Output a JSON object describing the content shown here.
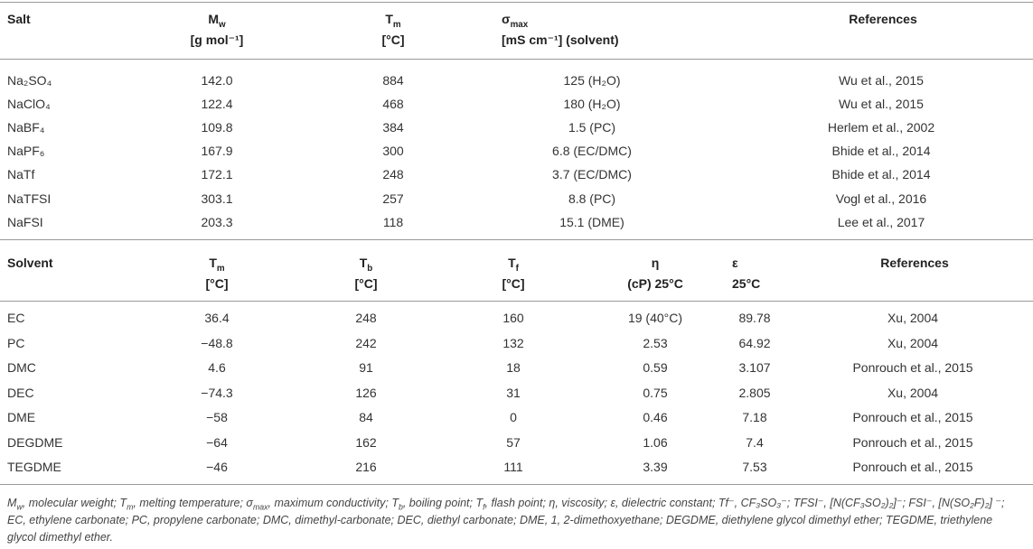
{
  "salt_table": {
    "header": [
      [
        [
          "Salt"
        ]
      ],
      [
        [
          "M",
          {
            "sub": "w"
          }
        ],
        [
          "[g mol⁻¹]"
        ]
      ],
      [
        [
          "T",
          {
            "sub": "m"
          }
        ],
        [
          "[°C]"
        ]
      ],
      [
        [
          "σ",
          {
            "sub": "max"
          }
        ],
        [
          "[mS cm⁻¹] (solvent)"
        ]
      ],
      [
        [
          "References"
        ]
      ]
    ],
    "rows": [
      [
        "Na₂SO₄",
        "142.0",
        "884",
        "125 (H₂O)",
        "Wu et al., 2015"
      ],
      [
        "NaClO₄",
        "122.4",
        "468",
        "180 (H₂O)",
        "Wu et al., 2015"
      ],
      [
        "NaBF₄",
        "109.8",
        "384",
        "1.5 (PC)",
        "Herlem et al., 2002"
      ],
      [
        "NaPF₆",
        "167.9",
        "300",
        "6.8 (EC/DMC)",
        "Bhide et al., 2014"
      ],
      [
        "NaTf",
        "172.1",
        "248",
        "3.7 (EC/DMC)",
        "Bhide et al., 2014"
      ],
      [
        "NaTFSI",
        "303.1",
        "257",
        "8.8 (PC)",
        "Vogl et al., 2016"
      ],
      [
        "NaFSI",
        "203.3",
        "118",
        "15.1 (DME)",
        "Lee et al., 2017"
      ]
    ]
  },
  "solvent_table": {
    "header": [
      [
        [
          "Solvent"
        ]
      ],
      [
        [
          "T",
          {
            "sub": "m"
          }
        ],
        [
          "[°C]"
        ]
      ],
      [
        [
          "T",
          {
            "sub": "b"
          }
        ],
        [
          "[°C]"
        ]
      ],
      [
        [
          "T",
          {
            "sub": "f"
          }
        ],
        [
          "[°C]"
        ]
      ],
      [
        [
          "η"
        ],
        [
          "(cP) 25°C"
        ]
      ],
      [
        [
          "ε"
        ],
        [
          "25°C"
        ]
      ],
      [
        [
          "References"
        ]
      ]
    ],
    "rows": [
      [
        "EC",
        "36.4",
        "248",
        "160",
        "19 (40°C)",
        "89.78",
        "Xu, 2004"
      ],
      [
        "PC",
        "−48.8",
        "242",
        "132",
        "2.53",
        "64.92",
        "Xu, 2004"
      ],
      [
        "DMC",
        "4.6",
        "91",
        "18",
        "0.59",
        "3.107",
        "Ponrouch et al., 2015"
      ],
      [
        "DEC",
        "−74.3",
        "126",
        "31",
        "0.75",
        "2.805",
        "Xu, 2004"
      ],
      [
        "DME",
        "−58",
        "84",
        "0",
        "0.46",
        "7.18",
        "Ponrouch et al., 2015"
      ],
      [
        "DEGDME",
        "−64",
        "162",
        "57",
        "1.06",
        "7.4",
        "Ponrouch et al., 2015"
      ],
      [
        "TEGDME",
        "−46",
        "216",
        "111",
        "3.39",
        "7.53",
        "Ponrouch et al., 2015"
      ]
    ]
  },
  "footnote": [
    "M",
    {
      "sub": "w"
    },
    ", molecular weight; T",
    {
      "sub": "m"
    },
    ", melting temperature; σ",
    {
      "sub": "max"
    },
    ", maximum conductivity; T",
    {
      "sub": "b"
    },
    ", boiling point; T",
    {
      "sub": "f"
    },
    ", flash point; η, viscosity; ε, dielectric constant; Tf⁻, CF₃SO₃⁻; TFSI⁻, [N(CF₃SO₂)₂]⁻; FSI⁻, [N(SO₂F)₂] ⁻; EC, ethylene carbonate; PC, propylene carbonate; DMC, dimethyl-carbonate; DEC, diethyl carbonate; DME, 1, 2-dimethoxyethane; DEGDME, diethylene glycol dimethyl ether; TEGDME, triethylene glycol dimethyl ether."
  ]
}
